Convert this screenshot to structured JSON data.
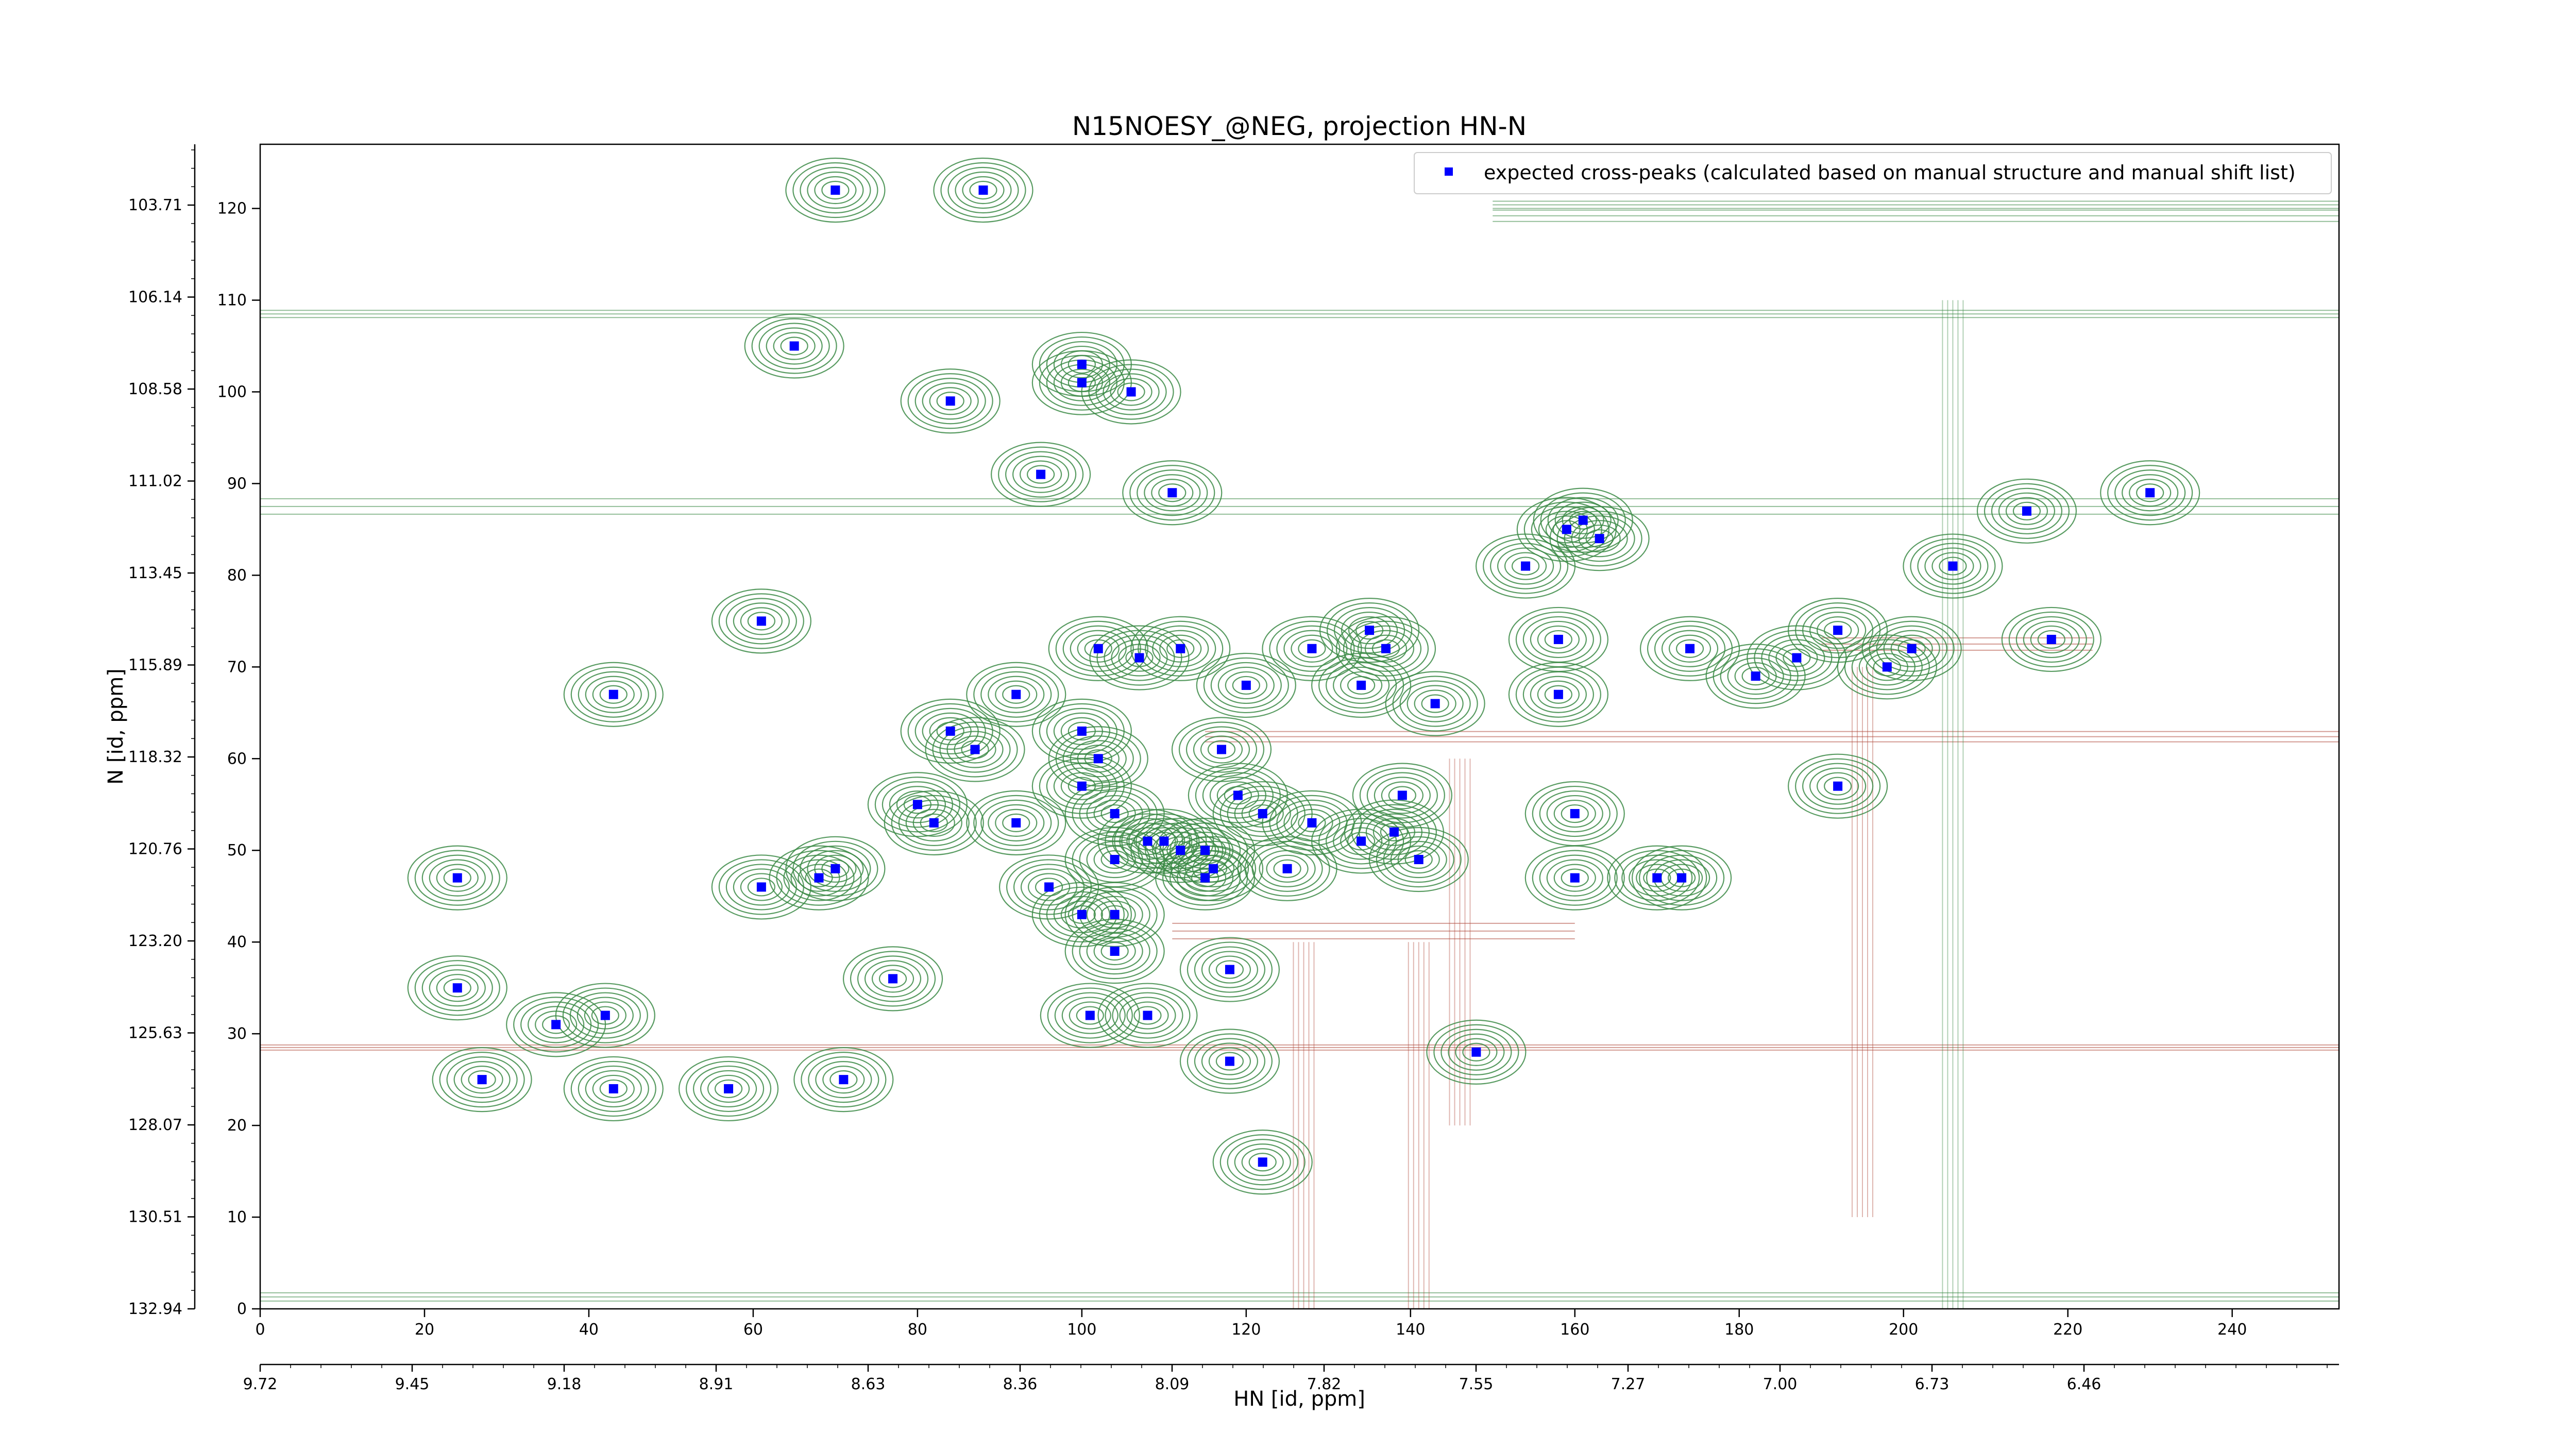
{
  "chart_data": {
    "type": "scatter",
    "title": "N15NOESY_@NEG, projection HN-N",
    "xlabel": "HN [id, ppm]",
    "ylabel": "N [id, ppm]",
    "x_index_range": [
      0,
      253
    ],
    "y_index_range": [
      0,
      127
    ],
    "x_index_ticks": [
      0,
      20,
      40,
      60,
      80,
      100,
      120,
      140,
      160,
      180,
      200,
      220,
      240
    ],
    "y_index_ticks": [
      0,
      10,
      20,
      30,
      40,
      50,
      60,
      70,
      80,
      90,
      100,
      110,
      120
    ],
    "x_ppm_tick_labels": [
      "9.72",
      "9.45",
      "9.18",
      "8.91",
      "8.63",
      "8.36",
      "8.09",
      "7.82",
      "7.55",
      "7.27",
      "7.00",
      "6.73",
      "6.46"
    ],
    "y_ppm_tick_labels": [
      "132.94",
      "130.51",
      "128.07",
      "125.63",
      "123.20",
      "120.76",
      "118.32",
      "115.89",
      "113.45",
      "111.02",
      "108.58",
      "106.14",
      "103.71"
    ],
    "legend": {
      "position": "top-right",
      "entries": [
        "expected cross-peaks (calculated based on manual structure and manual shift list)"
      ]
    },
    "colors": {
      "expected_peak": "#0000ff",
      "positive_contour": "#3b8a45",
      "negative_contour": "#b04a3c"
    },
    "series": [
      {
        "name": "expected cross-peaks (calculated based on manual structure and manual shift list)",
        "points": [
          [
            70,
            122
          ],
          [
            88,
            122
          ],
          [
            65,
            105
          ],
          [
            100,
            103
          ],
          [
            100,
            101
          ],
          [
            106,
            100
          ],
          [
            84,
            99
          ],
          [
            95,
            91
          ],
          [
            111,
            89
          ],
          [
            230,
            89
          ],
          [
            215,
            87
          ],
          [
            161,
            86
          ],
          [
            159,
            85
          ],
          [
            163,
            84
          ],
          [
            206,
            81
          ],
          [
            154,
            81
          ],
          [
            61,
            75
          ],
          [
            135,
            74
          ],
          [
            158,
            73
          ],
          [
            192,
            74
          ],
          [
            218,
            73
          ],
          [
            102,
            72
          ],
          [
            112,
            72
          ],
          [
            128,
            72
          ],
          [
            137,
            72
          ],
          [
            174,
            72
          ],
          [
            187,
            71
          ],
          [
            107,
            71
          ],
          [
            198,
            70
          ],
          [
            201,
            72
          ],
          [
            182,
            69
          ],
          [
            120,
            68
          ],
          [
            43,
            67
          ],
          [
            92,
            67
          ],
          [
            134,
            68
          ],
          [
            143,
            66
          ],
          [
            158,
            67
          ],
          [
            84,
            63
          ],
          [
            100,
            63
          ],
          [
            87,
            61
          ],
          [
            102,
            60
          ],
          [
            117,
            61
          ],
          [
            192,
            57
          ],
          [
            100,
            57
          ],
          [
            160,
            54
          ],
          [
            139,
            56
          ],
          [
            80,
            55
          ],
          [
            82,
            53
          ],
          [
            92,
            53
          ],
          [
            119,
            56
          ],
          [
            122,
            54
          ],
          [
            104,
            54
          ],
          [
            128,
            53
          ],
          [
            138,
            52
          ],
          [
            110,
            51
          ],
          [
            112,
            50
          ],
          [
            108,
            51
          ],
          [
            115,
            50
          ],
          [
            104,
            49
          ],
          [
            134,
            51
          ],
          [
            141,
            49
          ],
          [
            61,
            46
          ],
          [
            70,
            48
          ],
          [
            68,
            47
          ],
          [
            116,
            48
          ],
          [
            115,
            47
          ],
          [
            24,
            47
          ],
          [
            160,
            47
          ],
          [
            170,
            47
          ],
          [
            173,
            47
          ],
          [
            96,
            46
          ],
          [
            125,
            48
          ],
          [
            100,
            43
          ],
          [
            104,
            43
          ],
          [
            104,
            39
          ],
          [
            118,
            37
          ],
          [
            77,
            36
          ],
          [
            24,
            35
          ],
          [
            36,
            31
          ],
          [
            42,
            32
          ],
          [
            101,
            32
          ],
          [
            108,
            32
          ],
          [
            148,
            28
          ],
          [
            118,
            27
          ],
          [
            27,
            25
          ],
          [
            71,
            25
          ],
          [
            57,
            24
          ],
          [
            43,
            24
          ],
          [
            122,
            16
          ]
        ]
      }
    ]
  }
}
